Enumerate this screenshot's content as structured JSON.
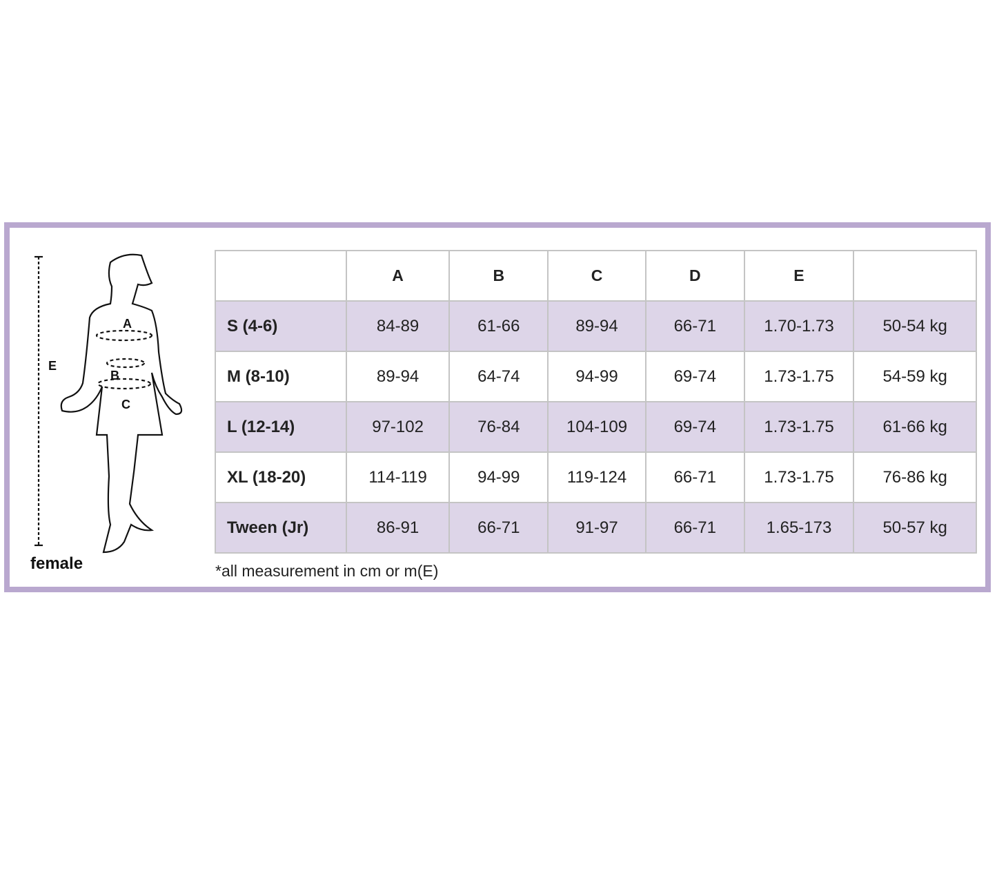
{
  "figure": {
    "label": "female",
    "markers": [
      "A",
      "B",
      "C",
      "E"
    ]
  },
  "table": {
    "headers": [
      "",
      "A",
      "B",
      "C",
      "D",
      "E",
      ""
    ],
    "rows": [
      [
        "S (4-6)",
        "84-89",
        "61-66",
        "89-94",
        "66-71",
        "1.70-1.73",
        "50-54 kg"
      ],
      [
        "M (8-10)",
        "89-94",
        "64-74",
        "94-99",
        "69-74",
        "1.73-1.75",
        "54-59 kg"
      ],
      [
        "L (12-14)",
        "97-102",
        "76-84",
        "104-109",
        "69-74",
        "1.73-1.75",
        "61-66 kg"
      ],
      [
        "XL (18-20)",
        "114-119",
        "94-99",
        "119-124",
        "66-71",
        "1.73-1.75",
        "76-86 kg"
      ],
      [
        "Tween (Jr)",
        "86-91",
        "66-71",
        "91-97",
        "66-71",
        "1.65-173",
        "50-57 kg"
      ]
    ]
  },
  "note": "*all measurement in cm or m(E)",
  "colors": {
    "frame": "#b9a8cf",
    "row_shade": "#ddd5e8",
    "grid": "#c4c4c4"
  }
}
